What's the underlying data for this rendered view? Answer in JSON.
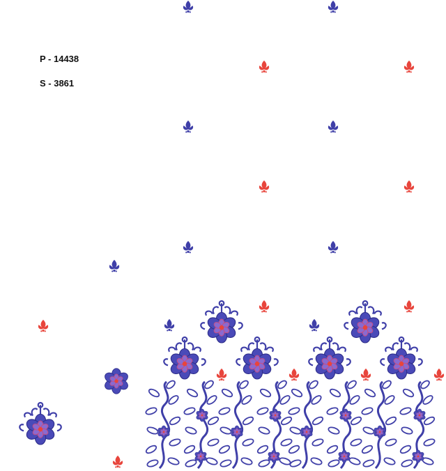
{
  "labels": {
    "p_code": "P - 14438",
    "s_code": "S - 3861"
  },
  "colors": {
    "blue": "#3f3fa8",
    "blue_light": "#6a6ad0",
    "red": "#e8453c",
    "pink": "#c0508a"
  },
  "motifs": [
    "blue-buta-icon",
    "red-buta-icon",
    "crowned-flower-icon",
    "flower-icon",
    "flowering-vine-icon"
  ]
}
